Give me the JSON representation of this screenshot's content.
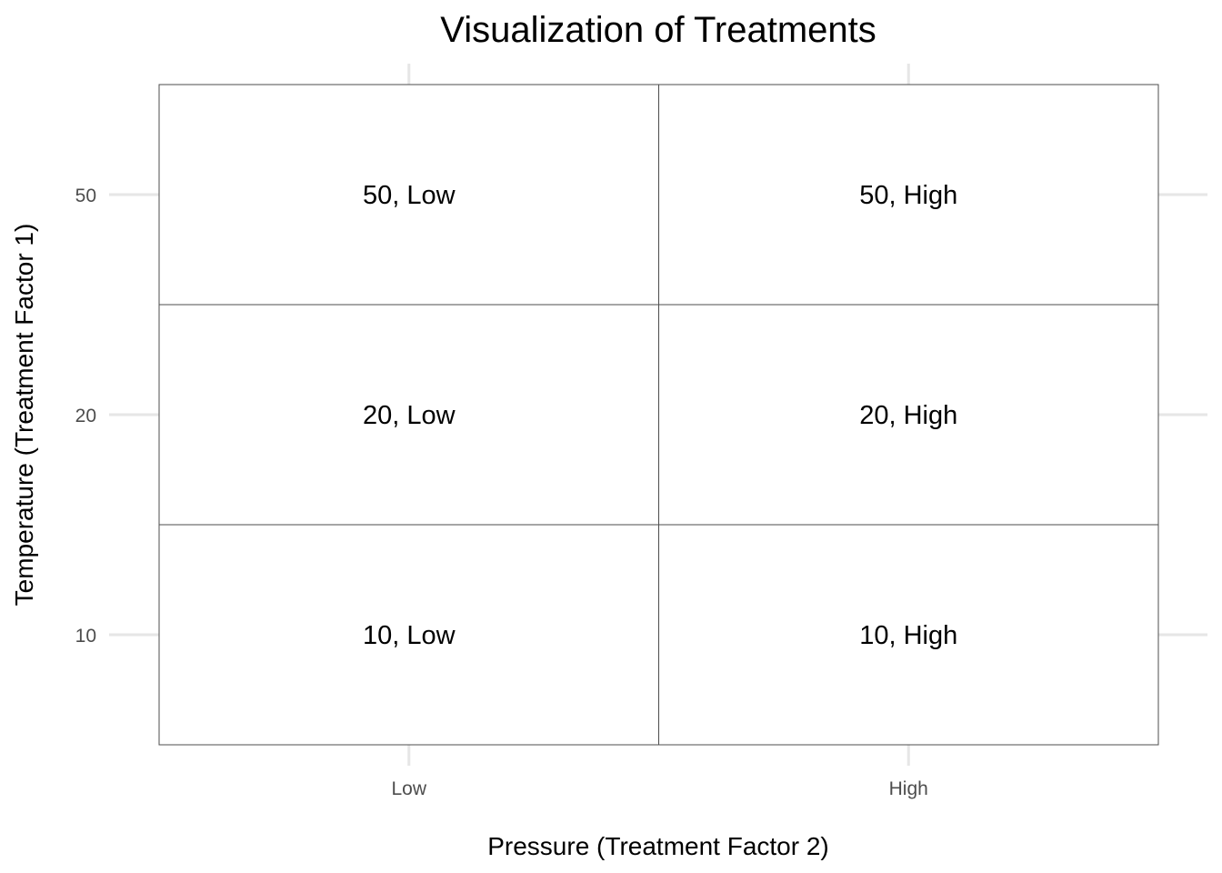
{
  "chart_data": {
    "type": "heatmap",
    "title": "Visualization of Treatments",
    "xlabel": "Pressure (Treatment Factor 2)",
    "ylabel": "Temperature (Treatment Factor 1)",
    "x_categories": [
      "Low",
      "High"
    ],
    "y_categories": [
      "10",
      "20",
      "50"
    ],
    "cells": [
      {
        "x": "Low",
        "y": "10",
        "label": "10, Low"
      },
      {
        "x": "High",
        "y": "10",
        "label": "10, High"
      },
      {
        "x": "Low",
        "y": "20",
        "label": "20, Low"
      },
      {
        "x": "High",
        "y": "20",
        "label": "20, High"
      },
      {
        "x": "Low",
        "y": "50",
        "label": "50, Low"
      },
      {
        "x": "High",
        "y": "50",
        "label": "50, High"
      }
    ],
    "grid": true,
    "legend": "none",
    "colors": {
      "cell_fill": "#ffffff",
      "cell_border": "#4d4d4d",
      "grid": "#e6e6e6",
      "tick_text": "#4d4d4d"
    }
  }
}
